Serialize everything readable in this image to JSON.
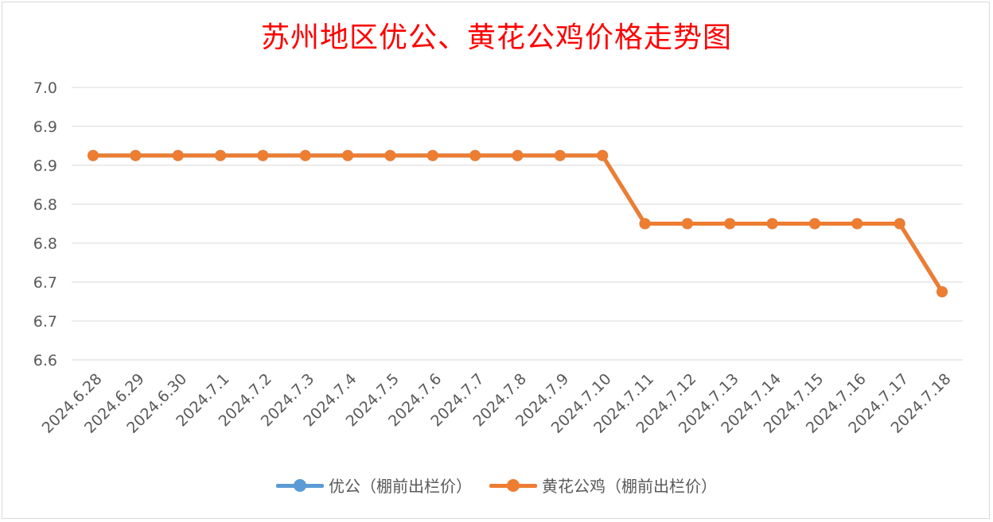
{
  "chart_data": {
    "type": "line",
    "title": "苏州地区优公、黄花公鸡价格走势图",
    "categories": [
      "2024.6.28",
      "2024.6.29",
      "2024.6.30",
      "2024.7.1",
      "2024.7.2",
      "2024.7.3",
      "2024.7.4",
      "2024.7.5",
      "2024.7.6",
      "2024.7.7",
      "2024.7.8",
      "2024.7.9",
      "2024.7.10",
      "2024.7.11",
      "2024.7.12",
      "2024.7.13",
      "2024.7.14",
      "2024.7.15",
      "2024.7.16",
      "2024.7.17",
      "2024.7.18"
    ],
    "y_ticks": [
      "7.0",
      "6.9",
      "6.9",
      "6.8",
      "6.8",
      "6.7",
      "6.7",
      "6.6"
    ],
    "ylim": [
      6.6,
      7.0
    ],
    "grid": true,
    "legend_position": "bottom",
    "series": [
      {
        "name": "优公（棚前出栏价）",
        "color": "#5b9bd5",
        "values": [
          6.9,
          6.9,
          6.9,
          6.9,
          6.9,
          6.9,
          6.9,
          6.9,
          6.9,
          6.9,
          6.9,
          6.9,
          6.9,
          6.8,
          6.8,
          6.8,
          6.8,
          6.8,
          6.8,
          6.8,
          6.7
        ]
      },
      {
        "name": "黄花公鸡（棚前出栏价）",
        "color": "#ed7d31",
        "values": [
          6.9,
          6.9,
          6.9,
          6.9,
          6.9,
          6.9,
          6.9,
          6.9,
          6.9,
          6.9,
          6.9,
          6.9,
          6.9,
          6.8,
          6.8,
          6.8,
          6.8,
          6.8,
          6.8,
          6.8,
          6.7
        ]
      }
    ]
  }
}
